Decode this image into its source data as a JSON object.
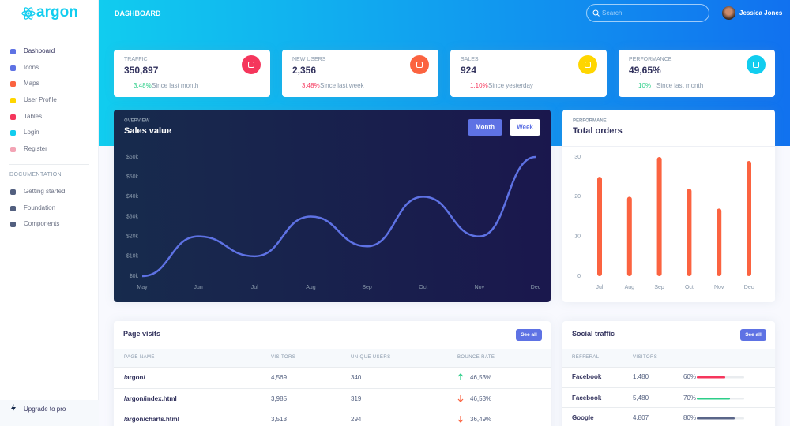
{
  "sidebar": {
    "brand": "argon",
    "nav": [
      {
        "label": "Dashboard",
        "icon_color": "#5e72e4"
      },
      {
        "label": "Icons",
        "icon_color": "#5e72e4"
      },
      {
        "label": "Maps",
        "icon_color": "#fb6340"
      },
      {
        "label": "User Profile",
        "icon_color": "#ffd600"
      },
      {
        "label": "Tables",
        "icon_color": "#f5365c"
      },
      {
        "label": "Login",
        "icon_color": "#11cdef"
      },
      {
        "label": "Register",
        "icon_color": "#f3a4b5"
      }
    ],
    "doc_heading": "DOCUMENTATION",
    "docs": [
      "Getting started",
      "Foundation",
      "Components"
    ],
    "upgrade": "Upgrade to pro"
  },
  "header": {
    "title": "DASHBOARD",
    "search_placeholder": "Search",
    "user": "Jessica Jones"
  },
  "stats": [
    {
      "label": "TRAFFIC",
      "value": "350,897",
      "change": "3.48%",
      "trend": "up",
      "period": "Since last month",
      "icon_color": "#f5365c"
    },
    {
      "label": "NEW USERS",
      "value": "2,356",
      "change": "3.48%",
      "trend": "down",
      "period": "Since last week",
      "icon_color": "#fb6340"
    },
    {
      "label": "SALES",
      "value": "924",
      "change": "1.10%",
      "trend": "down",
      "period": "Since yesterday",
      "icon_color": "#ffd600"
    },
    {
      "label": "PERFORMANCE",
      "value": "49,65%",
      "change": "10%",
      "trend": "up",
      "period": "Since last month",
      "icon_color": "#11cdef"
    }
  ],
  "chart_data": [
    {
      "type": "line",
      "overline": "OVERVIEW",
      "title": "Sales value",
      "buttons": [
        "Month",
        "Week"
      ],
      "categories": [
        "May",
        "Jun",
        "Jul",
        "Aug",
        "Sep",
        "Oct",
        "Nov",
        "Dec"
      ],
      "values": [
        0,
        20,
        10,
        30,
        15,
        40,
        20,
        60
      ],
      "color": "#5e72e4",
      "ylim": [
        0,
        60
      ],
      "yticks": [
        {
          "value": 0,
          "label": "$0k"
        },
        {
          "value": 10,
          "label": "$10k"
        },
        {
          "value": 20,
          "label": "$20k"
        },
        {
          "value": 30,
          "label": "$30k"
        },
        {
          "value": 40,
          "label": "$40k"
        },
        {
          "value": 50,
          "label": "$50k"
        },
        {
          "value": 60,
          "label": "$60k"
        }
      ],
      "grid": false
    },
    {
      "type": "bar",
      "overline": "PERFORMANE",
      "title": "Total orders",
      "categories": [
        "Jul",
        "Aug",
        "Sep",
        "Oct",
        "Nov",
        "Dec"
      ],
      "values": [
        25,
        20,
        30,
        22,
        17,
        29
      ],
      "color": "#fb6340",
      "ylim": [
        0,
        30
      ],
      "yticks": [
        0,
        10,
        20,
        30
      ],
      "grid": false
    }
  ],
  "page_visits": {
    "title": "Page visits",
    "button": "See all",
    "columns": [
      "PAGE NAME",
      "VISITORS",
      "UNIQUE USERS",
      "BOUNCE RATE"
    ],
    "rows": [
      {
        "page": "/argon/",
        "visitors": "4,569",
        "unique": "340",
        "bounce": "46,53%",
        "trend": "up"
      },
      {
        "page": "/argon/index.html",
        "visitors": "3,985",
        "unique": "319",
        "bounce": "46,53%",
        "trend": "down"
      },
      {
        "page": "/argon/charts.html",
        "visitors": "3,513",
        "unique": "294",
        "bounce": "36,49%",
        "trend": "down"
      }
    ]
  },
  "social_traffic": {
    "title": "Social traffic",
    "button": "See all",
    "columns": [
      "REFFERAL",
      "VISITORS"
    ],
    "rows": [
      {
        "name": "Facebook",
        "visitors": "1,480",
        "progress": {
          "value": 60,
          "label": "60%"
        },
        "color": "#f5365c"
      },
      {
        "name": "Facebook",
        "visitors": "5,480",
        "progress": {
          "value": 70,
          "label": "70%"
        },
        "color": "#2dce89"
      },
      {
        "name": "Google",
        "visitors": "4,807",
        "progress": {
          "value": 80,
          "label": "80%"
        },
        "color": "#5a6689"
      }
    ]
  }
}
